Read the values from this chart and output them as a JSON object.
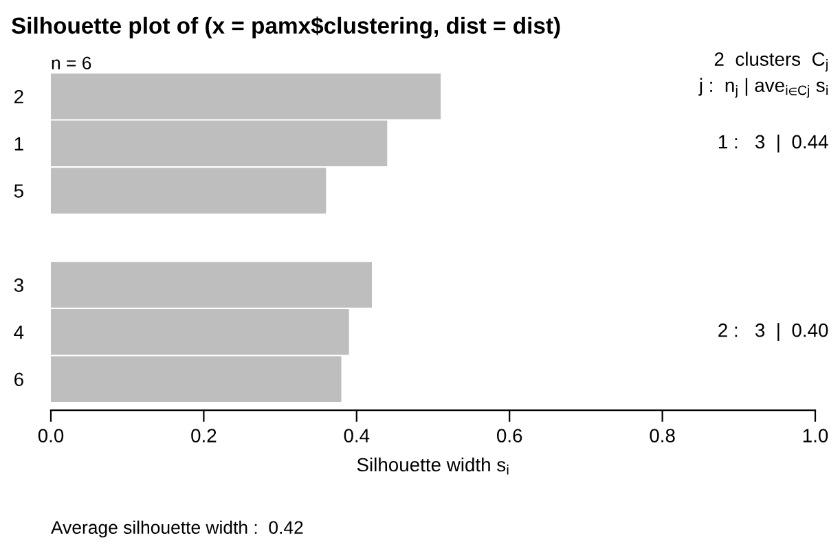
{
  "chart_data": {
    "type": "bar",
    "orientation": "horizontal",
    "title": "Silhouette plot of (x = pamx$clustering, dist = dist)",
    "subtitle": "n = 6",
    "xlabel": "Silhouette width s$_{i}$",
    "categories": [
      "2",
      "1",
      "5",
      null,
      "3",
      "4",
      "6"
    ],
    "values": [
      0.51,
      0.44,
      0.36,
      null,
      0.42,
      0.39,
      0.38
    ],
    "color": "#bebebe",
    "xlim": [
      0,
      1
    ],
    "xticks": [
      {
        "value": 0,
        "label": "0.0"
      },
      {
        "value": 0.2,
        "label": "0.2"
      },
      {
        "value": 0.4,
        "label": "0.4"
      },
      {
        "value": 0.6,
        "label": "0.6"
      },
      {
        "value": 0.8,
        "label": "0.8"
      },
      {
        "value": 1,
        "label": "1.0"
      }
    ],
    "grid": false,
    "annotations": [
      "2  clusters  C$_{j}$",
      "j :  n$_{j}$ | ave$_{i∈Cj}$ s$_{i}$",
      "1 :   3  |  0.44",
      "2 :   3  |  0.40",
      "Average silhouette width :  0.42"
    ]
  }
}
